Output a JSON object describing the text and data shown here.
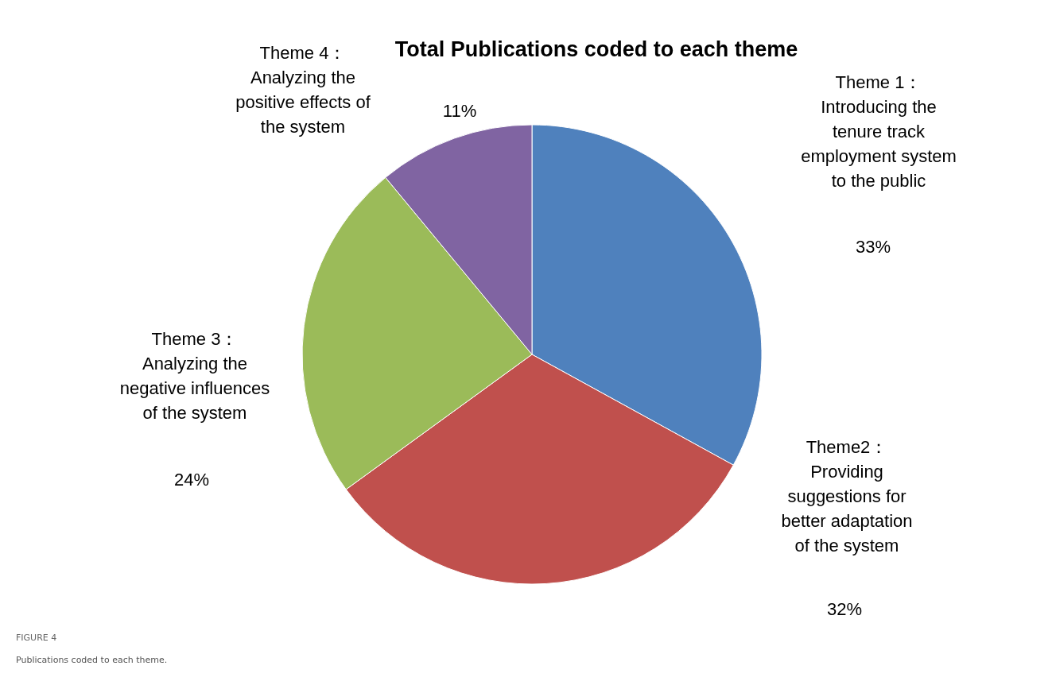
{
  "chart_data": {
    "type": "pie",
    "title": "Total Publications coded to each theme",
    "categories": [
      "Theme 1：\nIntroducing the\ntenure track\nemployment system\nto the public",
      "Theme2：\nProviding\nsuggestions for\nbetter adaptation\nof the system",
      "Theme 3：\nAnalyzing the\nnegative influences\nof the system",
      "Theme 4：\nAnalyzing the\npositive effects of\nthe system"
    ],
    "values": [
      33,
      32,
      24,
      11
    ],
    "value_labels": [
      "33%",
      "32%",
      "24%",
      "11%"
    ],
    "colors": [
      "#4f81bd",
      "#c0504d",
      "#9bbb59",
      "#8064a2"
    ],
    "annotations": [
      "FIGURE 4",
      "Publications coded to each theme."
    ]
  }
}
